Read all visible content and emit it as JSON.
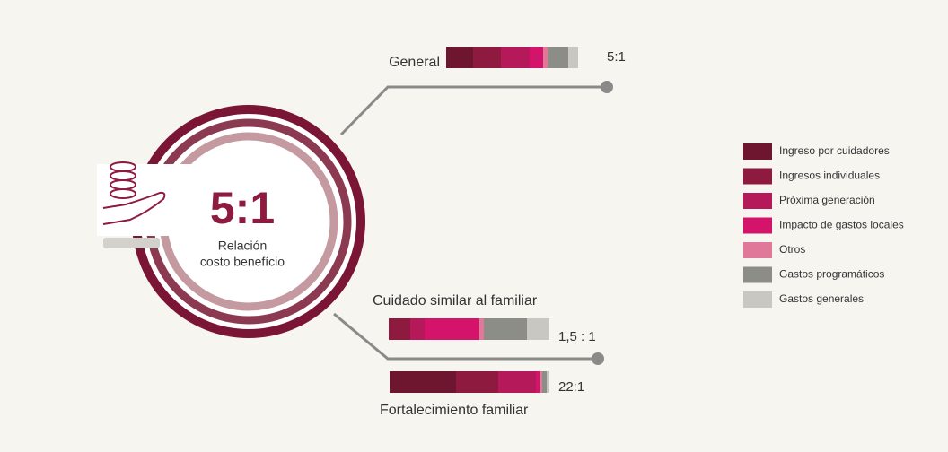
{
  "chart_data": {
    "type": "bar",
    "orientation": "horizontal",
    "stacked": true,
    "center_value": "5:1",
    "center_label_1": "Relación",
    "center_label_2": "costo benefício",
    "categories": [
      "General",
      "Cuidado similar al familiar",
      "Fortalecimiento familiar"
    ],
    "ratios": [
      "5:1",
      "1,5 : 1",
      "22:1"
    ],
    "series": [
      {
        "name": "Ingreso por cuidadores",
        "color": "#6e1530",
        "values": [
          30,
          0,
          74
        ]
      },
      {
        "name": "Ingresos individuales",
        "color": "#8e1a40",
        "values": [
          31,
          24,
          47
        ]
      },
      {
        "name": "Próxima generación",
        "color": "#b5195a",
        "values": [
          32,
          16,
          42
        ]
      },
      {
        "name": "Impacto de gastos locales",
        "color": "#d4146a",
        "values": [
          15,
          61,
          4
        ]
      },
      {
        "name": "Otros",
        "color": "#e0789a",
        "values": [
          5,
          5,
          3
        ]
      },
      {
        "name": "Gastos programáticos",
        "color": "#8d8d88",
        "values": [
          23,
          48,
          5
        ]
      },
      {
        "name": "Gastos generales",
        "color": "#c9c7c2",
        "values": [
          11,
          25,
          2
        ]
      }
    ]
  }
}
